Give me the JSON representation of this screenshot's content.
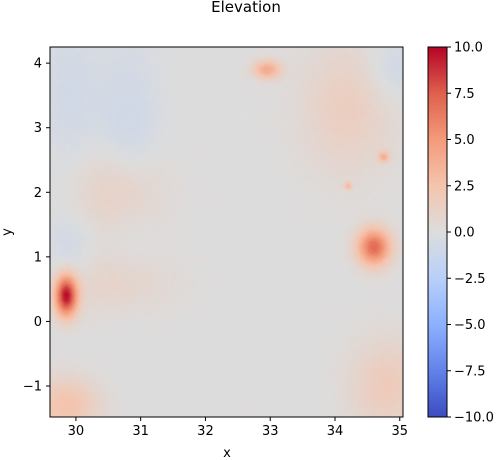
{
  "chart_data": {
    "type": "heatmap",
    "title": "Elevation",
    "xlabel": "x",
    "ylabel": "y",
    "xlim": [
      29.6,
      35.05
    ],
    "ylim": [
      -1.48,
      4.25
    ],
    "x_ticks": [
      30,
      31,
      32,
      33,
      34,
      35
    ],
    "y_ticks": [
      -1,
      0,
      1,
      2,
      3,
      4
    ],
    "colormap": "coolwarm",
    "vmin": -10.0,
    "vmax": 10.0,
    "colorbar_ticks": [
      "10.0",
      "7.5",
      "5.0",
      "2.5",
      "0.0",
      "−2.5",
      "−5.0",
      "−7.5",
      "−10.0"
    ],
    "colorbar_values": [
      10.0,
      7.5,
      5.0,
      2.5,
      0.0,
      -2.5,
      -5.0,
      -7.5,
      -10.0
    ],
    "grid": false,
    "background_value": 0.0,
    "features": [
      {
        "kind": "peak",
        "x": 29.85,
        "y": 0.4,
        "value": 9.5,
        "sx": 0.12,
        "sy": 0.22
      },
      {
        "kind": "peak",
        "x": 34.6,
        "y": 1.15,
        "value": 7.0,
        "sx": 0.18,
        "sy": 0.2
      },
      {
        "kind": "peak",
        "x": 32.95,
        "y": 3.9,
        "value": 4.0,
        "sx": 0.15,
        "sy": 0.1
      },
      {
        "kind": "peak",
        "x": 34.75,
        "y": 2.55,
        "value": 3.5,
        "sx": 0.06,
        "sy": 0.06
      },
      {
        "kind": "peak",
        "x": 34.2,
        "y": 2.1,
        "value": 3.0,
        "sx": 0.04,
        "sy": 0.04
      },
      {
        "kind": "ridge",
        "x": 30.7,
        "y": 2.0,
        "value": 2.0,
        "sx": 0.45,
        "sy": 0.5
      },
      {
        "kind": "ridge",
        "x": 29.85,
        "y": -1.3,
        "value": 2.5,
        "sx": 0.35,
        "sy": 0.3
      },
      {
        "kind": "ridge",
        "x": 34.8,
        "y": -1.0,
        "value": 1.8,
        "sx": 0.4,
        "sy": 0.5
      },
      {
        "kind": "ridge",
        "x": 34.2,
        "y": 3.3,
        "value": 1.5,
        "sx": 0.5,
        "sy": 0.7
      },
      {
        "kind": "ridge",
        "x": 30.6,
        "y": 0.6,
        "value": 1.2,
        "sx": 0.6,
        "sy": 0.35
      },
      {
        "kind": "basin",
        "x": 30.8,
        "y": 2.5,
        "value": -1.2,
        "sx": 0.35,
        "sy": 1.2
      },
      {
        "kind": "basin",
        "x": 29.9,
        "y": 3.5,
        "value": -0.8,
        "sx": 0.3,
        "sy": 0.8
      },
      {
        "kind": "basin",
        "x": 34.9,
        "y": 3.9,
        "value": -1.0,
        "sx": 0.3,
        "sy": 0.35
      },
      {
        "kind": "basin",
        "x": 29.9,
        "y": 1.1,
        "value": -0.9,
        "sx": 0.25,
        "sy": 0.4
      }
    ]
  }
}
